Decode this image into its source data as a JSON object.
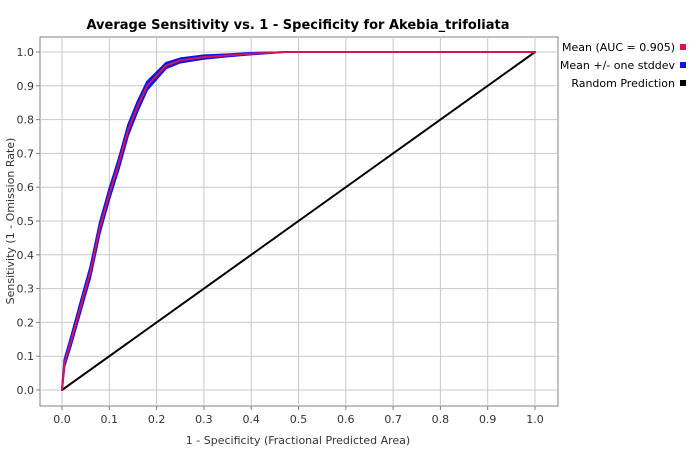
{
  "chart_data": {
    "type": "line",
    "title": "Average Sensitivity vs. 1 - Specificity for Akebia_trifoliata",
    "xlabel": "1 - Specificity (Fractional Predicted Area)",
    "ylabel": "Sensitivity (1 - Omission Rate)",
    "xlim": [
      0,
      1
    ],
    "ylim": [
      0,
      1
    ],
    "x_ticks": [
      "0.0",
      "0.1",
      "0.2",
      "0.3",
      "0.4",
      "0.5",
      "0.6",
      "0.7",
      "0.8",
      "0.9",
      "1.0"
    ],
    "y_ticks": [
      "0.0",
      "0.1",
      "0.2",
      "0.3",
      "0.4",
      "0.5",
      "0.6",
      "0.7",
      "0.8",
      "0.9",
      "1.0"
    ],
    "grid": true,
    "legend_position": "right",
    "colors": {
      "mean": "#d4145a",
      "stddev": "#0a14e6",
      "random": "#000000"
    },
    "series": [
      {
        "name": "Mean (AUC = 0.905)",
        "x": [
          0,
          0.005,
          0.02,
          0.04,
          0.06,
          0.08,
          0.1,
          0.12,
          0.14,
          0.16,
          0.18,
          0.2,
          0.22,
          0.25,
          0.3,
          0.35,
          0.4,
          0.47,
          0.55,
          0.7,
          0.85,
          1.0
        ],
        "values": [
          0,
          0.08,
          0.15,
          0.25,
          0.35,
          0.48,
          0.58,
          0.67,
          0.77,
          0.84,
          0.9,
          0.93,
          0.96,
          0.975,
          0.985,
          0.99,
          0.995,
          1.0,
          1.0,
          1.0,
          1.0,
          1.0
        ]
      },
      {
        "name": "Mean +/- one stddev",
        "stddev": [
          0,
          0.01,
          0.012,
          0.014,
          0.015,
          0.015,
          0.015,
          0.015,
          0.015,
          0.014,
          0.012,
          0.01,
          0.008,
          0.006,
          0.005,
          0.003,
          0.002,
          0.0,
          0.0,
          0.0,
          0.0,
          0.0
        ]
      },
      {
        "name": "Random Prediction",
        "x": [
          0,
          1
        ],
        "values": [
          0,
          1
        ]
      }
    ]
  }
}
